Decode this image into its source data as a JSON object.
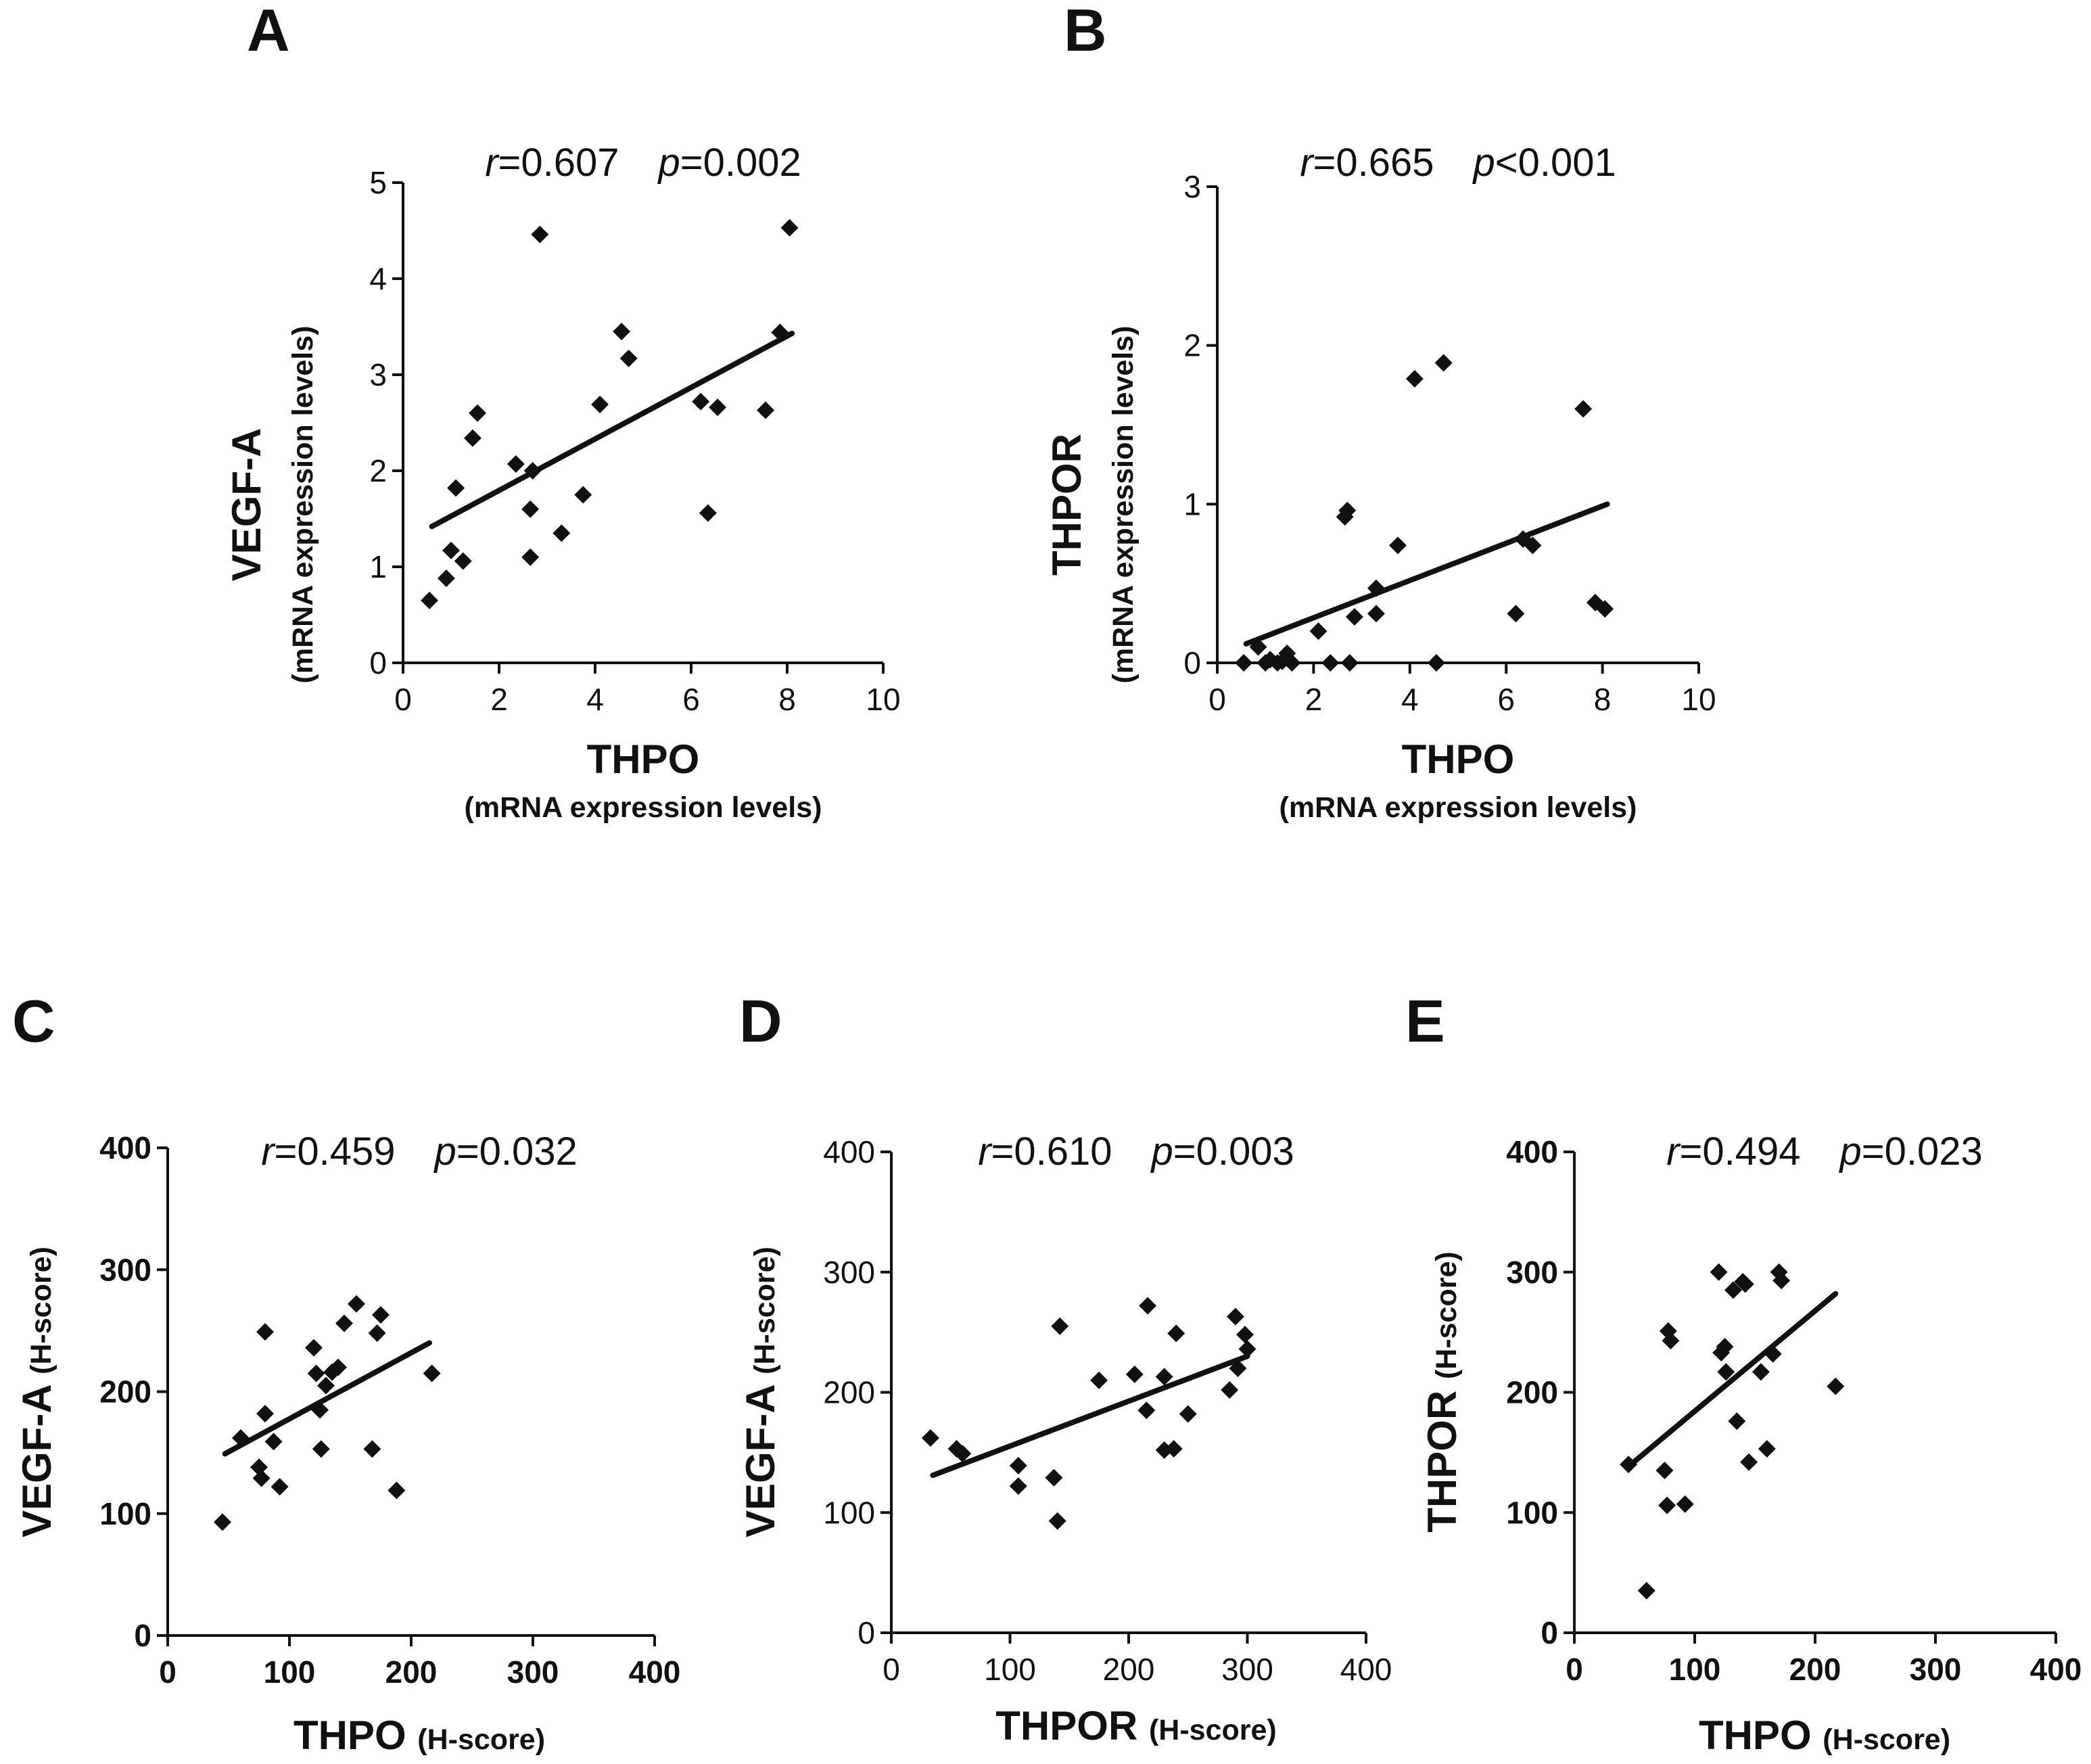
{
  "chart_data": [
    {
      "type": "scatter",
      "panel": "A",
      "stat_r_label": "r",
      "stat_r_value": "=0.607",
      "stat_p_label": "p",
      "stat_p_value": "=0.002",
      "xlabel": "THPO",
      "xlabel_sub": "(mRNA expression levels)",
      "ylabel": "VEGF-A",
      "ylabel_sub": "(mRNA expression levels)",
      "xlim": [
        0,
        10
      ],
      "ylim": [
        0,
        5
      ],
      "xticks": [
        "0",
        "2",
        "4",
        "6",
        "8",
        "10"
      ],
      "yticks": [
        "0",
        "1",
        "2",
        "3",
        "4",
        "5"
      ],
      "bold_ticks": false,
      "trendline": [
        [
          0.6,
          1.42
        ],
        [
          8.1,
          3.43
        ]
      ],
      "x": [
        0.55,
        0.9,
        1.0,
        1.25,
        1.1,
        1.45,
        1.55,
        2.35,
        2.7,
        2.65,
        2.65,
        2.85,
        3.3,
        3.75,
        4.1,
        4.55,
        4.7,
        6.2,
        6.35,
        6.55,
        7.55,
        7.85,
        8.05
      ],
      "y": [
        0.65,
        0.88,
        1.17,
        1.06,
        1.82,
        2.34,
        2.6,
        2.07,
        2.0,
        1.6,
        1.1,
        4.46,
        1.35,
        1.75,
        2.69,
        3.45,
        3.17,
        2.72,
        1.56,
        2.66,
        2.63,
        3.44,
        4.53
      ]
    },
    {
      "type": "scatter",
      "panel": "B",
      "stat_r_label": "r",
      "stat_r_value": "=0.665",
      "stat_p_label": "p",
      "stat_p_value": "<0.001",
      "xlabel": "THPO",
      "xlabel_sub": "(mRNA expression levels)",
      "ylabel": "THPOR",
      "ylabel_sub": "(mRNA expression levels)",
      "xlim": [
        0,
        10
      ],
      "ylim": [
        0,
        3
      ],
      "xticks": [
        "0",
        "2",
        "4",
        "6",
        "8",
        "10"
      ],
      "yticks": [
        "0",
        "1",
        "2",
        "3"
      ],
      "bold_ticks": false,
      "trendline": [
        [
          0.6,
          0.12
        ],
        [
          8.1,
          1.0
        ]
      ],
      "x": [
        0.55,
        0.85,
        1.0,
        1.1,
        1.25,
        1.35,
        1.45,
        1.55,
        2.1,
        2.35,
        2.65,
        2.7,
        2.75,
        2.85,
        3.3,
        3.3,
        3.75,
        4.1,
        4.55,
        4.7,
        6.2,
        6.35,
        6.55,
        7.6,
        7.85,
        8.05
      ],
      "y": [
        0.0,
        0.1,
        0.0,
        0.02,
        0.0,
        0.01,
        0.06,
        0.0,
        0.2,
        0.0,
        0.92,
        0.96,
        0.0,
        0.29,
        0.47,
        0.31,
        0.74,
        1.79,
        0.0,
        1.89,
        0.31,
        0.78,
        0.74,
        1.6,
        0.38,
        0.34
      ]
    },
    {
      "type": "scatter",
      "panel": "C",
      "stat_r_label": "r",
      "stat_r_value": "=0.459",
      "stat_p_label": "p",
      "stat_p_value": "=0.032",
      "xlabel": "THPO",
      "xlabel_sub": "(H-score)",
      "ylabel": "VEGF-A",
      "ylabel_sub": "(H-score)",
      "xlim": [
        0,
        400
      ],
      "ylim": [
        0,
        400
      ],
      "xticks": [
        "0",
        "100",
        "200",
        "300",
        "400"
      ],
      "yticks": [
        "0",
        "100",
        "200",
        "300",
        "400"
      ],
      "bold_ticks": true,
      "trendline": [
        [
          47,
          149
        ],
        [
          215,
          240
        ]
      ],
      "x": [
        45,
        60,
        75,
        77,
        80,
        80,
        87,
        92,
        120,
        122,
        125,
        126,
        130,
        135,
        140,
        145,
        155,
        168,
        172,
        175,
        188,
        217
      ],
      "y": [
        93,
        162,
        138,
        129,
        182,
        249,
        159,
        122,
        236,
        215,
        185,
        153,
        205,
        216,
        220,
        256,
        272,
        153,
        248,
        263,
        119,
        215
      ]
    },
    {
      "type": "scatter",
      "panel": "D",
      "stat_r_label": "r",
      "stat_r_value": "=0.610",
      "stat_p_label": "p",
      "stat_p_value": "=0.003",
      "xlabel": "THPOR",
      "xlabel_sub": "(H-score)",
      "ylabel": "VEGF-A",
      "ylabel_sub": "(H-score)",
      "xlim": [
        0,
        400
      ],
      "ylim": [
        0,
        400
      ],
      "xticks": [
        "0",
        "100",
        "200",
        "300",
        "400"
      ],
      "yticks": [
        "0",
        "100",
        "200",
        "300",
        "400"
      ],
      "bold_ticks": false,
      "trendline": [
        [
          35,
          131
        ],
        [
          300,
          230
        ]
      ],
      "x": [
        33,
        55,
        60,
        107,
        107,
        137,
        140,
        142,
        175,
        205,
        215,
        216,
        230,
        230,
        238,
        240,
        250,
        285,
        290,
        292,
        298,
        300
      ],
      "y": [
        162,
        153,
        149,
        139,
        122,
        129,
        93,
        255,
        210,
        215,
        185,
        272,
        213,
        152,
        153,
        249,
        182,
        202,
        263,
        220,
        248,
        236
      ]
    },
    {
      "type": "scatter",
      "panel": "E",
      "stat_r_label": "r",
      "stat_r_value": "=0.494",
      "stat_p_label": "p",
      "stat_p_value": "=0.023",
      "xlabel": "THPO",
      "xlabel_sub": "(H-score)",
      "ylabel": "THPOR",
      "ylabel_sub": "(H-score)",
      "xlim": [
        0,
        400
      ],
      "ylim": [
        0,
        400
      ],
      "xticks": [
        "0",
        "100",
        "200",
        "300",
        "400"
      ],
      "yticks": [
        "0",
        "100",
        "200",
        "300",
        "400"
      ],
      "bold_ticks": true,
      "trendline": [
        [
          47,
          140
        ],
        [
          217,
          282
        ]
      ],
      "x": [
        45,
        60,
        75,
        77,
        78,
        80,
        92,
        120,
        122,
        125,
        126,
        132,
        135,
        140,
        142,
        145,
        155,
        160,
        165,
        170,
        172,
        217
      ],
      "y": [
        140,
        35,
        135,
        106,
        251,
        243,
        107,
        300,
        233,
        238,
        217,
        285,
        176,
        292,
        290,
        142,
        217,
        153,
        232,
        300,
        293,
        205
      ]
    }
  ]
}
